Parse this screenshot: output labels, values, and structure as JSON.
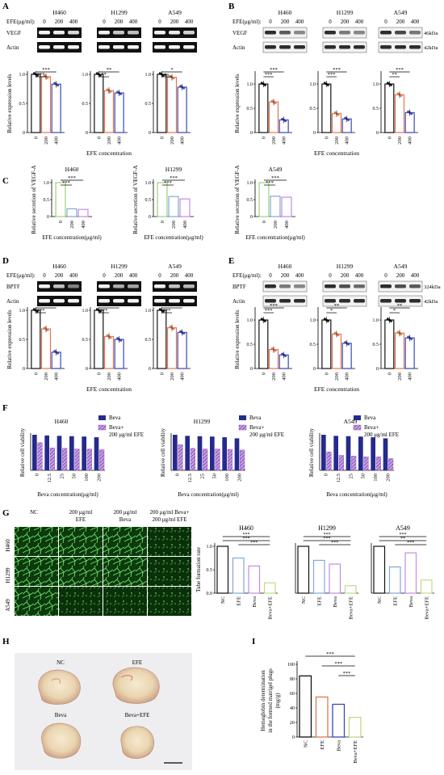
{
  "colors": {
    "black": "#111111",
    "orange": "#e07850",
    "blue": "#3a47b8",
    "green": "#9bd27a",
    "lightblue": "#7fa9d8",
    "violet": "#c58be3",
    "navy": "#252a8c",
    "purple": "#8b3fb5",
    "pink": "#f4b4c6",
    "olive": "#c3d98a"
  },
  "panels": {
    "A": {
      "letter": "A",
      "efe_label": "EFE(μg/ml):",
      "lanes": [
        "0",
        "200",
        "400"
      ],
      "cells": [
        "H460",
        "H1299",
        "A549"
      ],
      "bands": [
        "VEGF",
        "Actin"
      ],
      "ylabel": "Relative expression levels",
      "xlabel": "EFE concentration",
      "sig": [
        [
          "***",
          "***"
        ],
        [
          "**",
          "**"
        ],
        [
          "ns",
          "*"
        ]
      ]
    },
    "B": {
      "letter": "B",
      "efe_label": "EFE(μg/ml):",
      "lanes": [
        "0",
        "200",
        "400"
      ],
      "cells": [
        "H460",
        "H1299",
        "A549"
      ],
      "bands": [
        "VEGF",
        "Actin"
      ],
      "kda": [
        "46kDa",
        "42kDa"
      ],
      "ylabel": "Relative expression levels",
      "xlabel": "EFE concentration",
      "sig": [
        [
          "***",
          "***"
        ],
        [
          "***",
          "***"
        ],
        [
          "**",
          "***"
        ]
      ]
    },
    "C": {
      "letter": "C",
      "cells": [
        "H460",
        "H1299",
        "A549"
      ],
      "ylabel": "Relative secretion of VEGF-A",
      "xlabel": "EFE concentration(μg/ml)",
      "sig": [
        [
          "***",
          "***"
        ],
        [
          "***",
          "***"
        ],
        [
          "***",
          "***"
        ]
      ]
    },
    "D": {
      "letter": "D",
      "efe_label": "EFE(μg/ml):",
      "lanes": [
        "0",
        "200",
        "400"
      ],
      "cells": [
        "H460",
        "H1299",
        "A549"
      ],
      "bands": [
        "BPTF",
        "Actin"
      ],
      "ylabel": "Relative expression levels",
      "xlabel": "EFE concentration",
      "sig": [
        [
          "***",
          "***"
        ],
        [
          "***",
          "***"
        ],
        [
          "***",
          "***"
        ]
      ]
    },
    "E": {
      "letter": "E",
      "efe_label": "EFE(μg/ml):",
      "lanes": [
        "0",
        "200",
        "400"
      ],
      "cells": [
        "H460",
        "H1299",
        "A549"
      ],
      "bands": [
        "BPTF",
        "Actin"
      ],
      "kda": [
        "324kDa",
        "42kDa"
      ],
      "ylabel": "Relative expression levels",
      "xlabel": "EFE concentration",
      "sig": [
        [
          "***",
          "***"
        ],
        [
          "*",
          "**"
        ],
        [
          "*",
          "**"
        ]
      ]
    },
    "F": {
      "letter": "F",
      "cells": [
        "H460",
        "H1299",
        "A549"
      ],
      "ylabel": "Relative cell viability",
      "xlabel": "Beva concentration(μg/ml)",
      "legend": [
        "Beva",
        "Beva+",
        "200 μg/ml EFE"
      ]
    },
    "G": {
      "letter": "G",
      "col_titles": [
        "NC",
        "200 μg/ml",
        "EFE",
        "200 μg/ml",
        "Beva",
        "200 μg/ml Beva+",
        "200 μg/ml EFE"
      ],
      "row_labels": [
        "H460",
        "H1299",
        "A549"
      ],
      "cells": [
        "H460",
        "H1299",
        "A549"
      ],
      "ylabel": "Tube formation rate",
      "sig": [
        "***",
        "***",
        "***",
        "**",
        "***"
      ]
    },
    "H": {
      "letter": "H",
      "labels": [
        "NC",
        "EFE",
        "Beva",
        "Beva+EFE"
      ]
    },
    "I": {
      "letter": "I",
      "ylabel": [
        "Hemoglobin determination",
        "in the formed matrigel plugs",
        "(mg/g)"
      ],
      "sig": [
        "***",
        "***",
        "***"
      ]
    }
  },
  "chart_data": [
    {
      "panel": "A",
      "type": "bar",
      "categories": [
        "0",
        "200",
        "400"
      ],
      "ylim": [
        0,
        1.0
      ],
      "ticks": [
        "0",
        "0.5",
        "1.0"
      ],
      "series": [
        {
          "name": "H460",
          "values": [
            1.0,
            0.96,
            0.83
          ]
        },
        {
          "name": "H1299",
          "values": [
            1.0,
            0.72,
            0.68
          ]
        },
        {
          "name": "A549",
          "values": [
            1.0,
            0.95,
            0.78
          ]
        }
      ]
    },
    {
      "panel": "B",
      "type": "bar",
      "categories": [
        "0",
        "200",
        "400"
      ],
      "ylim": [
        0,
        1.2
      ],
      "ticks": [
        "0",
        "0.5",
        "1.0"
      ],
      "series": [
        {
          "name": "H460",
          "values": [
            1.0,
            0.63,
            0.26
          ]
        },
        {
          "name": "H1299",
          "values": [
            1.0,
            0.39,
            0.28
          ]
        },
        {
          "name": "A549",
          "values": [
            1.0,
            0.78,
            0.41
          ]
        }
      ]
    },
    {
      "panel": "C",
      "type": "bar",
      "categories": [
        "0",
        "200",
        "400"
      ],
      "ylim": [
        0,
        1.0
      ],
      "ticks": [
        "0",
        "0.5",
        "1.0"
      ],
      "series": [
        {
          "name": "H460",
          "values": [
            1.0,
            0.23,
            0.21
          ]
        },
        {
          "name": "H1299",
          "values": [
            1.0,
            0.59,
            0.52
          ]
        },
        {
          "name": "A549",
          "values": [
            1.0,
            0.6,
            0.57
          ]
        }
      ]
    },
    {
      "panel": "D",
      "type": "bar",
      "categories": [
        "0",
        "200",
        "400"
      ],
      "ylim": [
        0,
        1.0
      ],
      "ticks": [
        "0",
        "0.5",
        "1.0"
      ],
      "series": [
        {
          "name": "H460",
          "values": [
            1.0,
            0.68,
            0.28
          ]
        },
        {
          "name": "H1299",
          "values": [
            1.0,
            0.55,
            0.5
          ]
        },
        {
          "name": "A549",
          "values": [
            1.0,
            0.7,
            0.62
          ]
        }
      ]
    },
    {
      "panel": "E",
      "type": "bar",
      "categories": [
        "0",
        "200",
        "400"
      ],
      "ylim": [
        0,
        1.2
      ],
      "ticks": [
        "0",
        "0.5",
        "1.0"
      ],
      "series": [
        {
          "name": "H460",
          "values": [
            1.0,
            0.39,
            0.28
          ]
        },
        {
          "name": "H1299",
          "values": [
            1.0,
            0.71,
            0.52
          ]
        },
        {
          "name": "A549",
          "values": [
            1.0,
            0.73,
            0.63
          ]
        }
      ]
    },
    {
      "panel": "F",
      "type": "bar",
      "categories": [
        "0",
        "12.5",
        "25",
        "50",
        "100",
        "200"
      ],
      "groups": [
        {
          "name": "H460",
          "beva": [
            1.0,
            0.98,
            0.97,
            0.96,
            0.95,
            0.93
          ],
          "combo": [
            0.78,
            0.63,
            0.62,
            0.6,
            0.6,
            0.58
          ]
        },
        {
          "name": "H1299",
          "beva": [
            1.0,
            0.97,
            0.96,
            0.95,
            0.93,
            0.9
          ],
          "combo": [
            0.72,
            0.62,
            0.6,
            0.6,
            0.59,
            0.57
          ]
        },
        {
          "name": "A549",
          "beva": [
            1.0,
            0.97,
            0.96,
            0.95,
            0.93,
            0.9
          ],
          "combo": [
            0.52,
            0.42,
            0.4,
            0.38,
            0.38,
            0.33
          ]
        }
      ]
    },
    {
      "panel": "G",
      "type": "bar",
      "categories": [
        "NC",
        "EFE",
        "Beva",
        "Beva+EFE"
      ],
      "ylim": [
        0,
        1.0
      ],
      "ticks": [
        "0.0",
        "0.5",
        "1.0"
      ],
      "series": [
        {
          "name": "H460",
          "values": [
            1.0,
            0.75,
            0.58,
            0.22
          ]
        },
        {
          "name": "H1299",
          "values": [
            1.0,
            0.7,
            0.62,
            0.16
          ]
        },
        {
          "name": "A549",
          "values": [
            1.0,
            0.56,
            0.86,
            0.28
          ]
        }
      ]
    },
    {
      "panel": "I",
      "type": "bar",
      "categories": [
        "NC",
        "EFE",
        "Beva",
        "Beva+EFE"
      ],
      "ylim": [
        0,
        100
      ],
      "ticks": [
        "0",
        "20",
        "40",
        "60",
        "80",
        "100"
      ],
      "values": [
        84,
        55,
        45,
        27
      ]
    }
  ]
}
